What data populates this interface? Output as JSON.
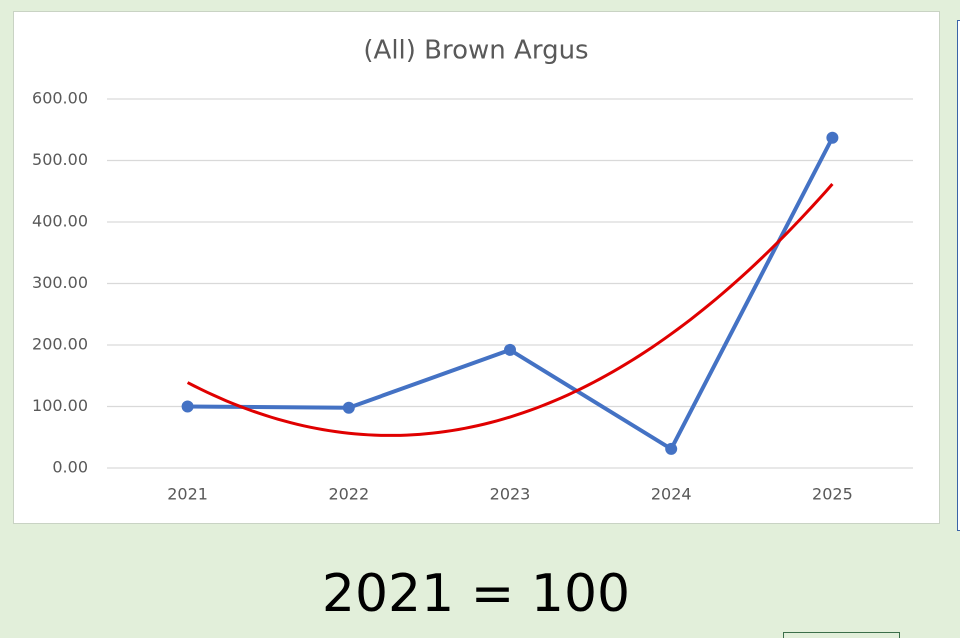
{
  "chart_data": {
    "type": "line",
    "title": "(All) Brown Argus",
    "categories": [
      "2021",
      "2022",
      "2023",
      "2024",
      "2025"
    ],
    "series": [
      {
        "color": "#4472c4",
        "values": [
          100,
          98,
          192,
          31,
          537
        ]
      }
    ],
    "trendline": {
      "order": 2,
      "color": "#e00000"
    },
    "ylim": [
      0,
      600
    ],
    "yticks": [
      {
        "value": 0,
        "label": "0.00"
      },
      {
        "value": 100,
        "label": "100.00"
      },
      {
        "value": 200,
        "label": "200.00"
      },
      {
        "value": 300,
        "label": "300.00"
      },
      {
        "value": 400,
        "label": "400.00"
      },
      {
        "value": 500,
        "label": "500.00"
      },
      {
        "value": 600,
        "label": "600.00"
      }
    ],
    "grid": true
  },
  "caption": "2021 = 100"
}
